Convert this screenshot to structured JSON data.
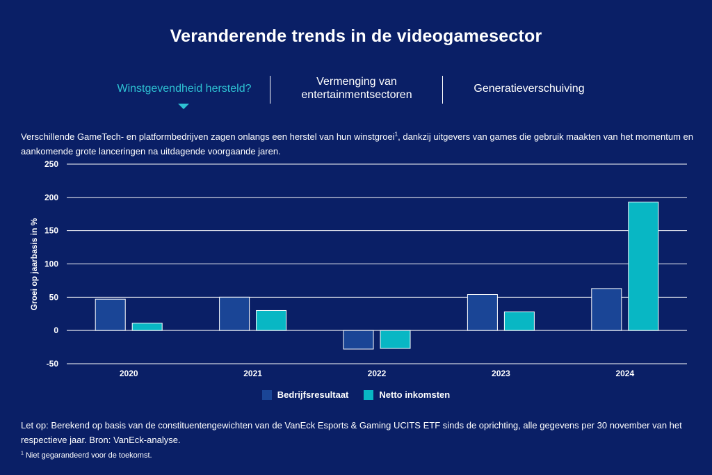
{
  "title": "Veranderende trends in de videogamesector",
  "tabs": [
    {
      "label": "Winstgevendheid hersteld?",
      "active": true
    },
    {
      "label": "Vermenging van entertainmentsectoren",
      "active": false
    },
    {
      "label": "Generatieverschuiving",
      "active": false
    }
  ],
  "intro": {
    "text_before": "Verschillende GameTech- en platformbedrijven zagen onlangs een herstel van hun winstgroei",
    "sup": "1",
    "text_after": ", dankzij uitgevers van games die gebruik maakten van het momentum en aankomende grote lanceringen na uitdagende voorgaande jaren."
  },
  "chart_data": {
    "type": "bar",
    "categories": [
      "2020",
      "2021",
      "2022",
      "2023",
      "2024"
    ],
    "series": [
      {
        "name": "Bedrijfsresultaat",
        "color": "#1a4596",
        "values": [
          47,
          50,
          -28,
          54,
          63
        ]
      },
      {
        "name": "Netto inkomsten",
        "color": "#08b7c4",
        "values": [
          11,
          30,
          -27,
          28,
          193
        ]
      }
    ],
    "ylabel": "Groei op jaarbasis in %",
    "xlabel": "",
    "ylim": [
      -50,
      250
    ],
    "yticks": [
      -50,
      0,
      50,
      100,
      150,
      200,
      250
    ],
    "grid": true,
    "legend": "bottom-center"
  },
  "note": "Let op: Berekend op basis van de constituentengewichten van de VanEck Esports & Gaming UCITS ETF sinds de oprichting, alle gegevens per 30 november van het respectieve jaar. Bron: VanEck-analyse.",
  "footnote": {
    "sup": "1",
    "text": " Niet gegarandeerd voor de toekomst."
  }
}
